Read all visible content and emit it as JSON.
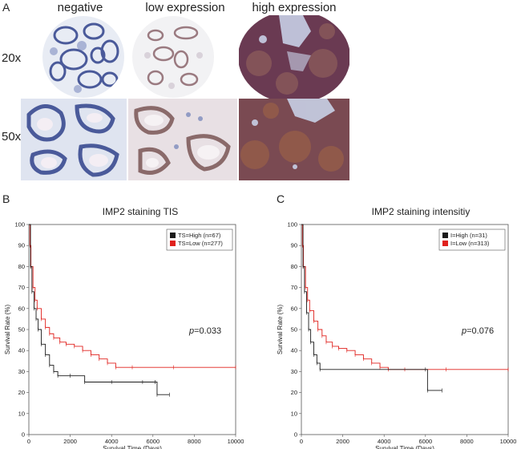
{
  "panel_a": {
    "letter": "A",
    "columns": [
      "negative",
      "low expression",
      "high expression"
    ],
    "rows": [
      "20x",
      "50x"
    ]
  },
  "panel_b": {
    "letter": "B",
    "p_prefix": "p",
    "p_value": "=0.033"
  },
  "panel_c": {
    "letter": "C",
    "p_prefix": "p",
    "p_value": "=0.076"
  },
  "colors": {
    "high": "#1a1a1a",
    "low": "#e0201c",
    "hematoxylin": "#5a6fb0",
    "dab": "#8a4a2a"
  },
  "chart_data": [
    {
      "type": "line",
      "title": "IMP2 staining TIS",
      "xlabel": "Survival Time (Days)",
      "ylabel": "Survival Rate (%)",
      "xlim": [
        0,
        10000
      ],
      "ylim": [
        0,
        100
      ],
      "xticks": [
        0,
        2000,
        4000,
        6000,
        8000,
        10000
      ],
      "yticks": [
        0,
        10,
        20,
        30,
        40,
        50,
        60,
        70,
        80,
        90,
        100
      ],
      "legend_position": "top-right",
      "series": [
        {
          "name": "TS=High (n=67)",
          "color": "#1a1a1a",
          "x": [
            0,
            80,
            150,
            250,
            350,
            450,
            600,
            800,
            1000,
            1200,
            1400,
            2000,
            2700,
            4000,
            5500,
            6100,
            6200,
            6800
          ],
          "y": [
            100,
            80,
            68,
            60,
            55,
            50,
            43,
            38,
            33,
            30,
            28,
            28,
            25,
            25,
            25,
            25,
            19,
            19
          ]
        },
        {
          "name": "TS=Low (n=277)",
          "color": "#e0201c",
          "x": [
            0,
            50,
            100,
            200,
            300,
            400,
            600,
            800,
            1000,
            1200,
            1500,
            1800,
            2200,
            2600,
            3000,
            3400,
            3800,
            4200,
            5000,
            7000,
            10000
          ],
          "y": [
            100,
            90,
            80,
            70,
            64,
            60,
            55,
            51,
            48,
            46,
            44,
            43,
            42,
            40,
            38,
            36,
            34,
            32,
            32,
            32,
            32
          ]
        }
      ]
    },
    {
      "type": "line",
      "title": "IMP2 staining intensitiy",
      "xlabel": "Survival Time (Days)",
      "ylabel": "Survival Rate (%)",
      "xlim": [
        0,
        10000
      ],
      "ylim": [
        0,
        100
      ],
      "xticks": [
        0,
        2000,
        4000,
        6000,
        8000,
        10000
      ],
      "yticks": [
        0,
        10,
        20,
        30,
        40,
        50,
        60,
        70,
        80,
        90,
        100
      ],
      "legend_position": "top-right",
      "series": [
        {
          "name": "I=High (n=31)",
          "color": "#1a1a1a",
          "x": [
            0,
            80,
            150,
            250,
            350,
            450,
            600,
            750,
            900,
            6000,
            6100,
            6800
          ],
          "y": [
            100,
            80,
            68,
            58,
            50,
            44,
            38,
            34,
            31,
            31,
            21,
            21
          ]
        },
        {
          "name": "I=Low (n=313)",
          "color": "#e0201c",
          "x": [
            0,
            50,
            100,
            200,
            300,
            400,
            600,
            800,
            1000,
            1200,
            1500,
            1800,
            2200,
            2600,
            3000,
            3400,
            3800,
            4200,
            5000,
            7000,
            10000
          ],
          "y": [
            100,
            90,
            80,
            70,
            64,
            59,
            54,
            50,
            47,
            44,
            42,
            41,
            40,
            38,
            36,
            34,
            32,
            31,
            31,
            31,
            31
          ]
        }
      ]
    }
  ]
}
